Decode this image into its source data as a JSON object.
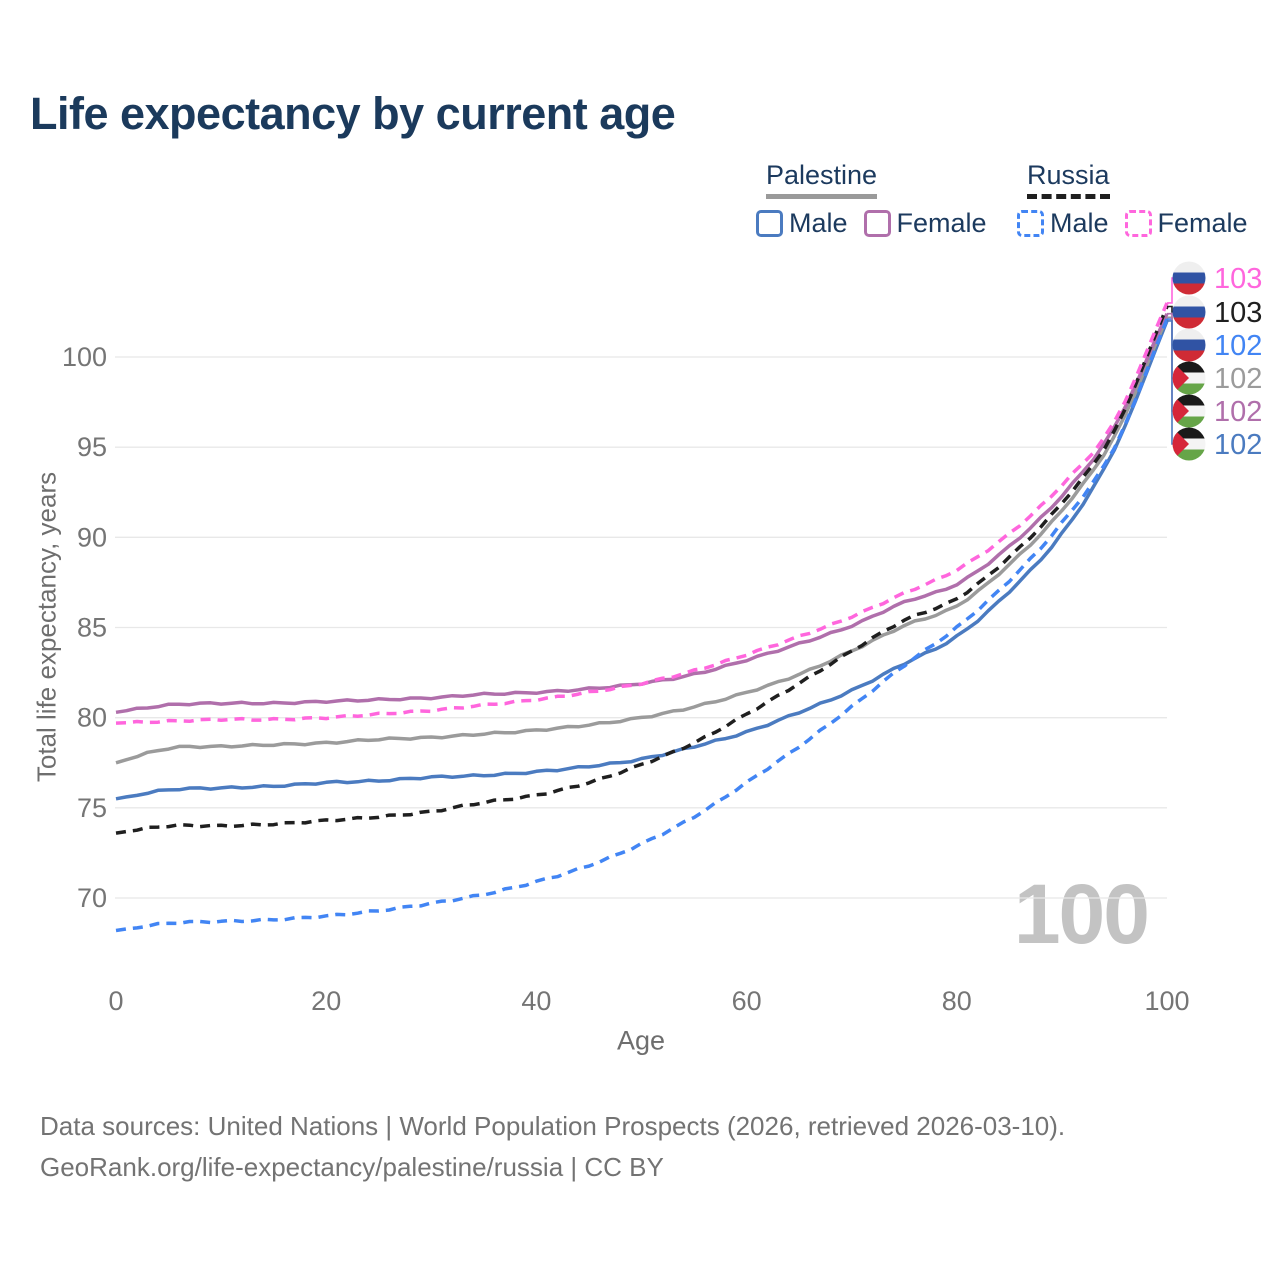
{
  "title": "Life expectancy by current age",
  "watermark": "100",
  "legend": {
    "palestine": {
      "title": "Palestine",
      "underline_color": "#9a9a9a",
      "items": [
        {
          "label": "Male",
          "color": "#4b7bc0",
          "dashed": false
        },
        {
          "label": "Female",
          "color": "#b06fab",
          "dashed": false
        }
      ]
    },
    "russia": {
      "title": "Russia",
      "underline_color": "#1f1f1f",
      "items": [
        {
          "label": "Male",
          "color": "#4285f4",
          "dashed": true
        },
        {
          "label": "Female",
          "color": "#ff66dd",
          "dashed": true
        }
      ]
    }
  },
  "chart_data": {
    "type": "line",
    "title": "Life expectancy by current age",
    "xlabel": "Age",
    "ylabel": "Total life expectancy, years",
    "xlim": [
      0,
      100
    ],
    "ylim": [
      67,
      103.5
    ],
    "xticks": [
      0,
      20,
      40,
      60,
      80,
      100
    ],
    "yticks": [
      70,
      75,
      80,
      85,
      90,
      95,
      100
    ],
    "grid": "horizontal",
    "gridline_color": "#e8e8e8",
    "axis_text_color": "#757575",
    "ages": [
      0,
      5,
      10,
      15,
      20,
      25,
      30,
      35,
      40,
      45,
      50,
      55,
      60,
      65,
      70,
      75,
      80,
      85,
      90,
      95,
      100
    ],
    "series": [
      {
        "id": "palestine_male",
        "name": "Palestine Male",
        "country": "Palestine",
        "sex": "Male",
        "color": "#4b7bc0",
        "dash": "solid",
        "values": [
          75.5,
          76.0,
          76.1,
          76.2,
          76.4,
          76.5,
          76.7,
          76.8,
          77.0,
          77.3,
          77.7,
          78.4,
          79.2,
          80.3,
          81.5,
          83.0,
          84.5,
          87.0,
          90.2,
          94.9,
          102.0
        ]
      },
      {
        "id": "palestine_total",
        "name": "Palestine",
        "country": "Palestine",
        "sex": "Both",
        "color": "#9b9b9b",
        "dash": "solid",
        "values": [
          77.5,
          78.3,
          78.4,
          78.5,
          78.6,
          78.8,
          78.9,
          79.1,
          79.3,
          79.6,
          80.0,
          80.6,
          81.4,
          82.4,
          83.7,
          85.1,
          86.2,
          88.5,
          91.5,
          95.6,
          102.2
        ]
      },
      {
        "id": "palestine_female",
        "name": "Palestine Female",
        "country": "Palestine",
        "sex": "Female",
        "color": "#b06fab",
        "dash": "solid",
        "values": [
          80.3,
          80.7,
          80.8,
          80.8,
          80.9,
          81.0,
          81.1,
          81.3,
          81.4,
          81.6,
          81.9,
          82.4,
          83.2,
          84.1,
          85.1,
          86.4,
          87.4,
          89.5,
          92.3,
          96.1,
          102.4
        ]
      },
      {
        "id": "russia_male",
        "name": "Russia Male",
        "country": "Russia",
        "sex": "Male",
        "color": "#4285f4",
        "dash": "dashed",
        "values": [
          68.2,
          68.6,
          68.7,
          68.8,
          69.0,
          69.3,
          69.7,
          70.2,
          70.9,
          71.8,
          73.0,
          74.5,
          76.4,
          78.4,
          80.6,
          82.9,
          85.0,
          87.6,
          90.8,
          95.0,
          102.1
        ]
      },
      {
        "id": "russia_total",
        "name": "Russia",
        "country": "Russia",
        "sex": "Both",
        "color": "#1f1f1f",
        "dash": "dashed",
        "values": [
          73.6,
          74.0,
          74.0,
          74.1,
          74.3,
          74.5,
          74.8,
          75.3,
          75.7,
          76.4,
          77.4,
          78.6,
          80.2,
          81.9,
          83.7,
          85.4,
          86.6,
          88.9,
          91.9,
          95.9,
          102.8
        ]
      },
      {
        "id": "russia_female",
        "name": "Russia Female",
        "country": "Russia",
        "sex": "Female",
        "color": "#ff66dd",
        "dash": "dashed",
        "values": [
          79.7,
          79.8,
          79.9,
          79.9,
          80.0,
          80.2,
          80.4,
          80.7,
          81.0,
          81.4,
          81.9,
          82.6,
          83.5,
          84.5,
          85.6,
          86.9,
          88.2,
          90.2,
          92.9,
          96.4,
          103.0
        ]
      }
    ],
    "end_labels": [
      {
        "series": "russia_female",
        "value": "103",
        "flag": "russia"
      },
      {
        "series": "russia_total",
        "value": "103",
        "flag": "russia"
      },
      {
        "series": "russia_male",
        "value": "102",
        "flag": "russia"
      },
      {
        "series": "palestine_total",
        "value": "102",
        "flag": "palestine"
      },
      {
        "series": "palestine_female",
        "value": "102",
        "flag": "palestine"
      },
      {
        "series": "palestine_male",
        "value": "102",
        "flag": "palestine"
      }
    ],
    "flag_colors": {
      "russia": {
        "top": "#efefef",
        "middle": "#3053a4",
        "bottom": "#cf2b35"
      },
      "palestine": {
        "top": "#1a1a1a",
        "middle": "#f4f4f4",
        "bottom": "#66a548",
        "triangle": "#d6263a"
      }
    }
  },
  "source": {
    "line1": "Data sources: United Nations | World Population Prospects (2026, retrieved 2026-03-10).",
    "line2": "GeoRank.org/life-expectancy/palestine/russia | CC BY"
  }
}
